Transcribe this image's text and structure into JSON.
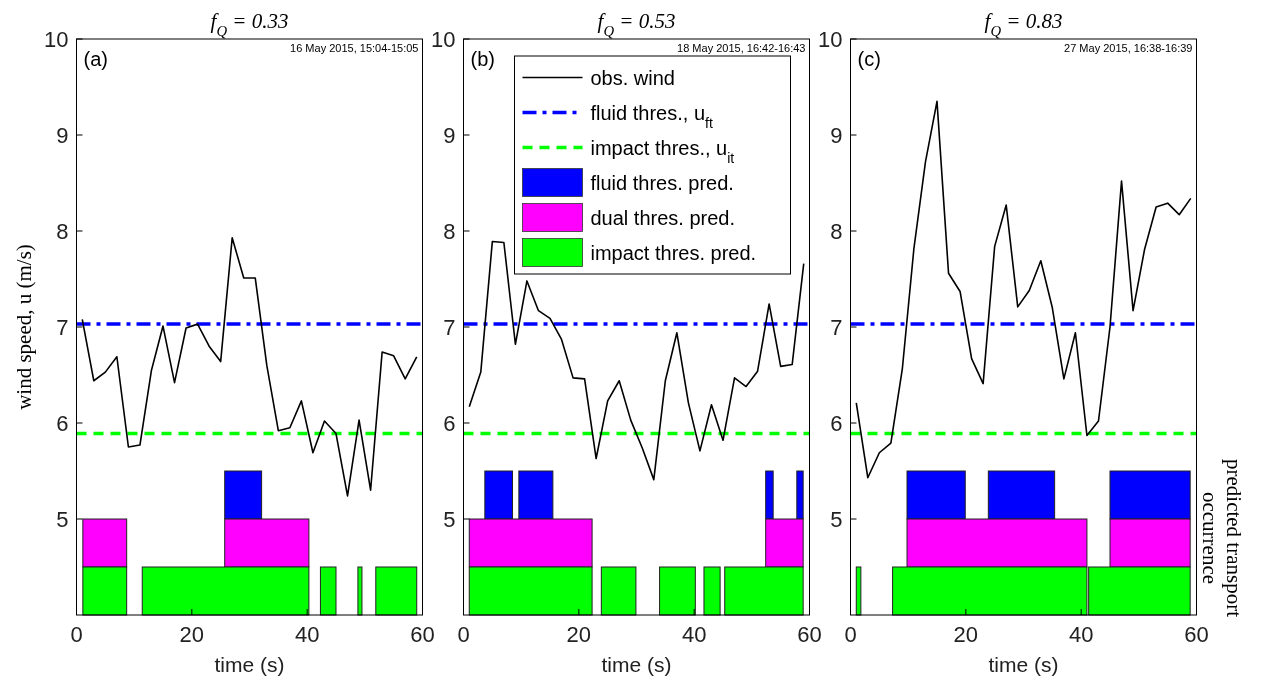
{
  "chart_data": [
    {
      "type": "line",
      "title": "f$_{Q}$ = 0.33",
      "xlabel": "time (s)",
      "ylabel": "wind speed, u (m/s)",
      "annotations": [
        "(a)",
        "16 May 2015, 15:04-15:05"
      ],
      "xlim": [
        0,
        60
      ],
      "ylim": [
        4,
        10
      ],
      "xticks": [
        0,
        20,
        40,
        60
      ],
      "yticks": [
        5,
        6,
        7,
        8,
        9,
        10
      ],
      "series": [
        {
          "color": "#000000",
          "x": [
            1,
            3,
            5,
            7,
            9,
            11,
            13,
            15,
            17,
            19,
            21,
            23,
            25,
            27,
            29,
            31,
            33,
            35,
            37,
            39,
            41,
            43,
            45,
            47,
            49,
            51,
            53,
            55,
            57,
            59
          ],
          "values": [
            7.08,
            6.44,
            6.53,
            6.69,
            5.75,
            5.77,
            6.55,
            7.01,
            6.42,
            6.99,
            7.03,
            6.8,
            6.64,
            7.93,
            7.51,
            7.51,
            6.6,
            5.92,
            5.95,
            6.23,
            5.69,
            6.02,
            5.89,
            5.24,
            6.03,
            5.3,
            6.74,
            6.7,
            6.46,
            6.69
          ]
        }
      ],
      "ref_lines": [
        {
          "axis": "y",
          "value": 7.03,
          "color": "#0000ff",
          "line_style": "dashdot"
        },
        {
          "axis": "y",
          "value": 5.89,
          "color": "#00ff00",
          "line_style": "dashed"
        }
      ],
      "bands": [
        {
          "axis": "x",
          "from": 25.7,
          "to": 32.1,
          "color": "#0000ff"
        },
        {
          "axis": "x",
          "from": 1.1,
          "to": 8.7,
          "color": "#ff00ff"
        },
        {
          "axis": "x",
          "from": 25.7,
          "to": 40.3,
          "color": "#ff00ff"
        },
        {
          "axis": "x",
          "from": 1.1,
          "to": 8.7,
          "color": "#00ff00"
        },
        {
          "axis": "x",
          "from": 11.4,
          "to": 40.3,
          "color": "#00ff00"
        },
        {
          "axis": "x",
          "from": 42.3,
          "to": 45.0,
          "color": "#00ff00"
        },
        {
          "axis": "x",
          "from": 48.8,
          "to": 49.5,
          "color": "#00ff00"
        },
        {
          "axis": "x",
          "from": 51.9,
          "to": 59.0,
          "color": "#00ff00"
        }
      ]
    },
    {
      "type": "line",
      "title": "f$_{Q}$ = 0.53",
      "xlabel": "time (s)",
      "annotations": [
        "(b)",
        "18 May 2015, 16:42-16:43"
      ],
      "xlim": [
        0,
        60
      ],
      "ylim": [
        4,
        10
      ],
      "xticks": [
        0,
        20,
        40,
        60
      ],
      "yticks": [
        5,
        6,
        7,
        8,
        9,
        10
      ],
      "legend": "top right",
      "series": [
        {
          "name": "obs. wind",
          "color": "#000000",
          "x": [
            1,
            3,
            5,
            7,
            9,
            11,
            13,
            15,
            17,
            19,
            21,
            23,
            25,
            27,
            29,
            31,
            33,
            35,
            37,
            39,
            41,
            43,
            45,
            47,
            49,
            51,
            53,
            55,
            57,
            59
          ],
          "values": [
            6.17,
            6.53,
            7.89,
            7.88,
            6.82,
            7.48,
            7.17,
            7.09,
            6.87,
            6.47,
            6.46,
            5.63,
            6.23,
            6.44,
            6.03,
            5.74,
            5.41,
            6.44,
            6.94,
            6.21,
            5.71,
            6.19,
            5.82,
            6.47,
            6.38,
            6.54,
            7.24,
            6.59,
            6.61,
            7.66
          ]
        }
      ],
      "ref_lines": [
        {
          "axis": "y",
          "value": 7.03,
          "label": "fluid thres., u$_{ft}$",
          "color": "#0000ff",
          "line_style": "dashdot"
        },
        {
          "axis": "y",
          "value": 5.89,
          "label": "impact thres., u$_{it}$",
          "color": "#00ff00",
          "line_style": "dashed"
        }
      ],
      "bands": [
        {
          "axis": "x",
          "from": 3.7,
          "to": 8.5,
          "color": "#0000ff",
          "label": "fluid thres. pred."
        },
        {
          "axis": "x",
          "from": 9.6,
          "to": 15.5,
          "color": "#0000ff"
        },
        {
          "axis": "x",
          "from": 52.4,
          "to": 53.7,
          "color": "#0000ff"
        },
        {
          "axis": "x",
          "from": 57.8,
          "to": 58.9,
          "color": "#0000ff"
        },
        {
          "axis": "x",
          "from": 1.0,
          "to": 22.3,
          "color": "#ff00ff",
          "label": "dual thres. pred."
        },
        {
          "axis": "x",
          "from": 52.4,
          "to": 58.9,
          "color": "#ff00ff"
        },
        {
          "axis": "x",
          "from": 1.0,
          "to": 22.3,
          "color": "#00ff00",
          "label": "impact thres. pred."
        },
        {
          "axis": "x",
          "from": 23.9,
          "to": 29.9,
          "color": "#00ff00"
        },
        {
          "axis": "x",
          "from": 34.0,
          "to": 40.2,
          "color": "#00ff00"
        },
        {
          "axis": "x",
          "from": 41.7,
          "to": 44.5,
          "color": "#00ff00"
        },
        {
          "axis": "x",
          "from": 45.3,
          "to": 58.9,
          "color": "#00ff00"
        }
      ]
    },
    {
      "type": "line",
      "title": "f$_{Q}$ = 0.83",
      "xlabel": "time (s)",
      "y2label": "predicted transport occurrence",
      "annotations": [
        "(c)",
        "27 May 2015, 16:38-16:39"
      ],
      "xlim": [
        0,
        60
      ],
      "ylim": [
        4,
        10
      ],
      "xticks": [
        0,
        20,
        40,
        60
      ],
      "yticks": [
        5,
        6,
        7,
        8,
        9,
        10
      ],
      "series": [
        {
          "color": "#000000",
          "x": [
            1,
            3,
            5,
            7,
            9,
            11,
            13,
            15,
            17,
            19,
            21,
            23,
            25,
            27,
            29,
            31,
            33,
            35,
            37,
            39,
            41,
            43,
            45,
            47,
            49,
            51,
            53,
            55,
            57,
            59
          ],
          "values": [
            6.21,
            5.43,
            5.69,
            5.79,
            6.57,
            7.82,
            8.72,
            9.35,
            7.56,
            7.37,
            6.67,
            6.41,
            7.84,
            8.27,
            7.21,
            7.38,
            7.69,
            7.2,
            6.46,
            6.94,
            5.87,
            6.02,
            7.0,
            8.52,
            7.17,
            7.81,
            8.25,
            8.29,
            8.17,
            8.34
          ]
        }
      ],
      "ref_lines": [
        {
          "axis": "y",
          "value": 7.03,
          "color": "#0000ff",
          "line_style": "dashdot"
        },
        {
          "axis": "y",
          "value": 5.89,
          "color": "#00ff00",
          "line_style": "dashed"
        }
      ],
      "bands": [
        {
          "axis": "x",
          "from": 9.8,
          "to": 19.9,
          "color": "#0000ff"
        },
        {
          "axis": "x",
          "from": 23.9,
          "to": 35.4,
          "color": "#0000ff"
        },
        {
          "axis": "x",
          "from": 45.0,
          "to": 58.9,
          "color": "#0000ff"
        },
        {
          "axis": "x",
          "from": 9.8,
          "to": 41.0,
          "color": "#ff00ff"
        },
        {
          "axis": "x",
          "from": 45.0,
          "to": 58.9,
          "color": "#ff00ff"
        },
        {
          "axis": "x",
          "from": 1.0,
          "to": 1.8,
          "color": "#00ff00"
        },
        {
          "axis": "x",
          "from": 7.3,
          "to": 41.0,
          "color": "#00ff00"
        },
        {
          "axis": "x",
          "from": 41.3,
          "to": 58.9,
          "color": "#00ff00"
        }
      ]
    }
  ]
}
